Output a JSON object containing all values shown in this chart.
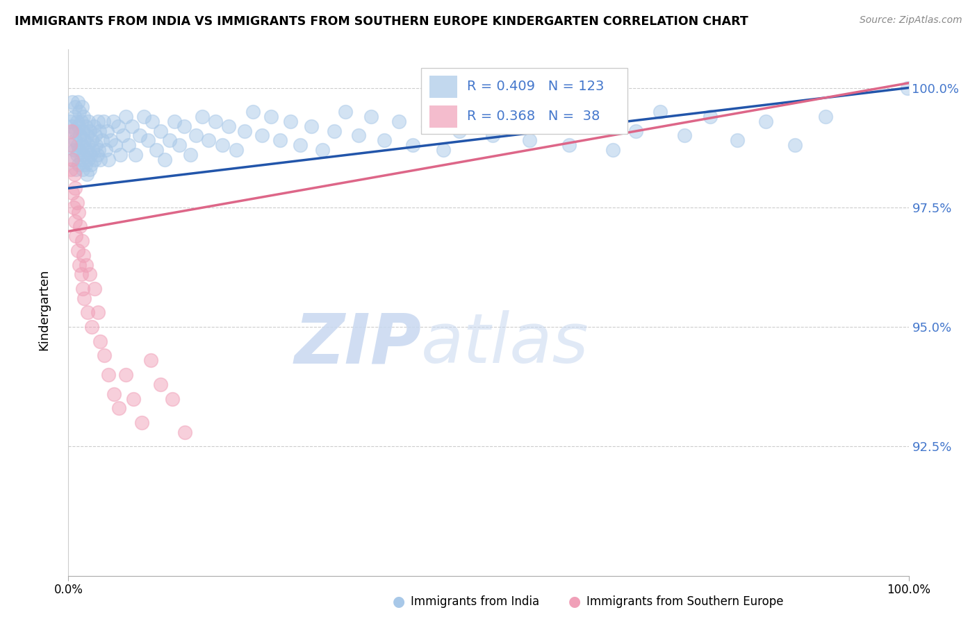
{
  "title": "IMMIGRANTS FROM INDIA VS IMMIGRANTS FROM SOUTHERN EUROPE KINDERGARTEN CORRELATION CHART",
  "source": "Source: ZipAtlas.com",
  "xlabel_blue": "Immigrants from India",
  "xlabel_pink": "Immigrants from Southern Europe",
  "ylabel": "Kindergarten",
  "watermark_zip": "ZIP",
  "watermark_atlas": "atlas",
  "blue_R": 0.409,
  "blue_N": 123,
  "pink_R": 0.368,
  "pink_N": 38,
  "blue_color": "#A8C8E8",
  "pink_color": "#F0A0B8",
  "blue_line_color": "#2255AA",
  "pink_line_color": "#DD6688",
  "xlim": [
    0.0,
    1.0
  ],
  "ylim": [
    0.898,
    1.008
  ],
  "yticks": [
    0.925,
    0.95,
    0.975,
    1.0
  ],
  "ytick_labels": [
    "92.5%",
    "95.0%",
    "97.5%",
    "100.0%"
  ],
  "blue_trend_x0": 0.0,
  "blue_trend_y0": 0.979,
  "blue_trend_x1": 1.0,
  "blue_trend_y1": 1.0,
  "pink_trend_x0": 0.0,
  "pink_trend_y0": 0.97,
  "pink_trend_x1": 1.0,
  "pink_trend_y1": 1.001,
  "blue_scatter_x": [
    0.002,
    0.003,
    0.004,
    0.005,
    0.005,
    0.006,
    0.007,
    0.007,
    0.008,
    0.008,
    0.009,
    0.009,
    0.01,
    0.01,
    0.011,
    0.011,
    0.012,
    0.012,
    0.013,
    0.013,
    0.014,
    0.015,
    0.015,
    0.016,
    0.016,
    0.017,
    0.017,
    0.018,
    0.018,
    0.019,
    0.02,
    0.02,
    0.021,
    0.022,
    0.022,
    0.023,
    0.024,
    0.024,
    0.025,
    0.025,
    0.026,
    0.027,
    0.028,
    0.029,
    0.03,
    0.031,
    0.032,
    0.033,
    0.034,
    0.035,
    0.036,
    0.037,
    0.038,
    0.04,
    0.042,
    0.044,
    0.046,
    0.048,
    0.05,
    0.053,
    0.056,
    0.059,
    0.062,
    0.065,
    0.068,
    0.072,
    0.076,
    0.08,
    0.085,
    0.09,
    0.095,
    0.1,
    0.105,
    0.11,
    0.115,
    0.12,
    0.126,
    0.132,
    0.138,
    0.145,
    0.152,
    0.159,
    0.167,
    0.175,
    0.183,
    0.191,
    0.2,
    0.21,
    0.22,
    0.23,
    0.241,
    0.252,
    0.264,
    0.276,
    0.289,
    0.302,
    0.316,
    0.33,
    0.345,
    0.36,
    0.376,
    0.393,
    0.41,
    0.428,
    0.446,
    0.465,
    0.485,
    0.505,
    0.527,
    0.549,
    0.572,
    0.596,
    0.622,
    0.648,
    0.675,
    0.704,
    0.733,
    0.764,
    0.796,
    0.83,
    0.865,
    0.901,
    0.999
  ],
  "blue_scatter_y": [
    0.993,
    0.988,
    0.992,
    0.985,
    0.997,
    0.991,
    0.987,
    0.994,
    0.989,
    0.996,
    0.983,
    0.991,
    0.986,
    0.993,
    0.988,
    0.997,
    0.984,
    0.992,
    0.987,
    0.995,
    0.99,
    0.985,
    0.993,
    0.988,
    0.996,
    0.983,
    0.991,
    0.986,
    0.994,
    0.989,
    0.984,
    0.992,
    0.987,
    0.982,
    0.99,
    0.985,
    0.993,
    0.988,
    0.983,
    0.991,
    0.986,
    0.984,
    0.989,
    0.987,
    0.992,
    0.985,
    0.99,
    0.988,
    0.986,
    0.993,
    0.987,
    0.991,
    0.985,
    0.989,
    0.993,
    0.987,
    0.991,
    0.985,
    0.989,
    0.993,
    0.988,
    0.992,
    0.986,
    0.99,
    0.994,
    0.988,
    0.992,
    0.986,
    0.99,
    0.994,
    0.989,
    0.993,
    0.987,
    0.991,
    0.985,
    0.989,
    0.993,
    0.988,
    0.992,
    0.986,
    0.99,
    0.994,
    0.989,
    0.993,
    0.988,
    0.992,
    0.987,
    0.991,
    0.995,
    0.99,
    0.994,
    0.989,
    0.993,
    0.988,
    0.992,
    0.987,
    0.991,
    0.995,
    0.99,
    0.994,
    0.989,
    0.993,
    0.988,
    0.992,
    0.987,
    0.991,
    0.995,
    0.99,
    0.994,
    0.989,
    0.993,
    0.988,
    0.992,
    0.987,
    0.991,
    0.995,
    0.99,
    0.994,
    0.989,
    0.993,
    0.988,
    0.994,
    1.0
  ],
  "pink_scatter_x": [
    0.002,
    0.003,
    0.004,
    0.005,
    0.005,
    0.006,
    0.007,
    0.008,
    0.008,
    0.009,
    0.01,
    0.011,
    0.012,
    0.013,
    0.014,
    0.015,
    0.016,
    0.017,
    0.018,
    0.019,
    0.021,
    0.023,
    0.025,
    0.028,
    0.031,
    0.035,
    0.038,
    0.043,
    0.048,
    0.054,
    0.06,
    0.068,
    0.077,
    0.087,
    0.098,
    0.11,
    0.124,
    0.139
  ],
  "pink_scatter_y": [
    0.988,
    0.983,
    0.991,
    0.978,
    0.985,
    0.975,
    0.982,
    0.972,
    0.979,
    0.969,
    0.976,
    0.966,
    0.974,
    0.963,
    0.971,
    0.961,
    0.968,
    0.958,
    0.965,
    0.956,
    0.963,
    0.953,
    0.961,
    0.95,
    0.958,
    0.953,
    0.947,
    0.944,
    0.94,
    0.936,
    0.933,
    0.94,
    0.935,
    0.93,
    0.943,
    0.938,
    0.935,
    0.928
  ]
}
